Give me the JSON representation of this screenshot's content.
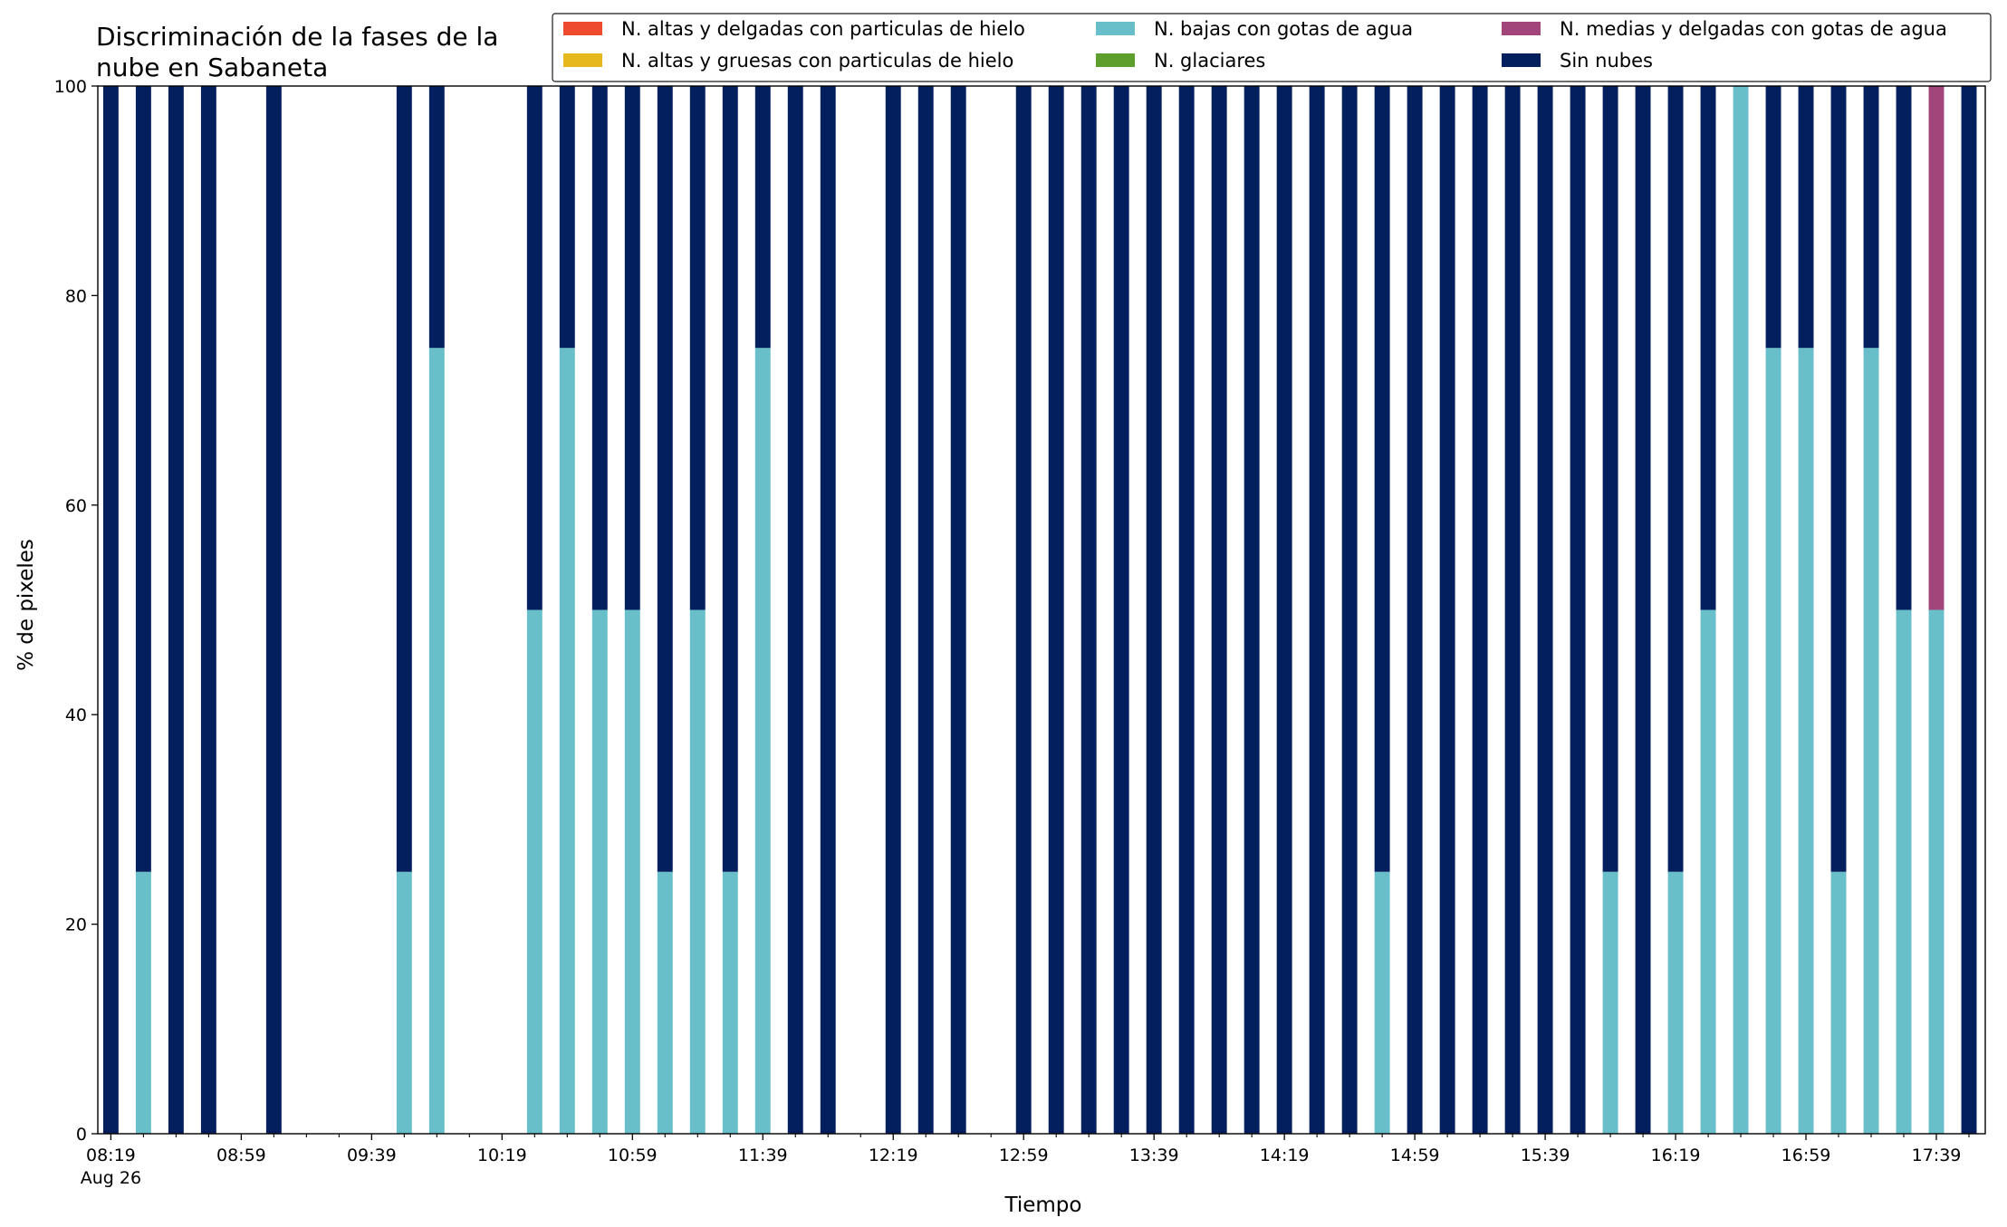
{
  "chart_data": {
    "type": "bar",
    "stacked": true,
    "title_lines": [
      "Discriminación de la fases de la",
      "nube en Sabaneta"
    ],
    "xlabel": "Tiempo",
    "ylabel": "% de pixeles",
    "ylim": [
      0,
      100
    ],
    "yticks": [
      0,
      20,
      40,
      60,
      80,
      100
    ],
    "xlim_minutes": [
      495,
      1074
    ],
    "xticks": [
      {
        "minute": 499,
        "label": "08:19",
        "sublabel": "Aug 26"
      },
      {
        "minute": 539,
        "label": "08:59",
        "sublabel": ""
      },
      {
        "minute": 579,
        "label": "09:39",
        "sublabel": ""
      },
      {
        "minute": 619,
        "label": "10:19",
        "sublabel": ""
      },
      {
        "minute": 659,
        "label": "10:59",
        "sublabel": ""
      },
      {
        "minute": 699,
        "label": "11:39",
        "sublabel": ""
      },
      {
        "minute": 739,
        "label": "12:19",
        "sublabel": ""
      },
      {
        "minute": 779,
        "label": "12:59",
        "sublabel": ""
      },
      {
        "minute": 819,
        "label": "13:39",
        "sublabel": ""
      },
      {
        "minute": 859,
        "label": "14:19",
        "sublabel": ""
      },
      {
        "minute": 899,
        "label": "14:59",
        "sublabel": ""
      },
      {
        "minute": 939,
        "label": "15:39",
        "sublabel": ""
      },
      {
        "minute": 979,
        "label": "16:19",
        "sublabel": ""
      },
      {
        "minute": 1019,
        "label": "16:59",
        "sublabel": ""
      },
      {
        "minute": 1059,
        "label": "17:39",
        "sublabel": ""
      }
    ],
    "minor_tick_step_minutes": 10,
    "bar_width_minutes": 4.7,
    "legend": {
      "placement": "top-right",
      "columns": 3,
      "entries": [
        {
          "key": "alt_delg_hielo",
          "label": "N. altas y delgadas con particulas de hielo",
          "color": "#ee4a2e"
        },
        {
          "key": "alt_grue_hielo",
          "label": "N. altas y gruesas con particulas de hielo",
          "color": "#e6b81e"
        },
        {
          "key": "bajas_agua",
          "label": "N. bajas con gotas de agua",
          "color": "#68bfca"
        },
        {
          "key": "glaciares",
          "label": "N. glaciares",
          "color": "#5e9e2d"
        },
        {
          "key": "medias_agua",
          "label": "N. medias y delgadas con gotas de agua",
          "color": "#a1457a"
        },
        {
          "key": "sin_nubes",
          "label": "Sin nubes",
          "color": "#041f5e"
        }
      ]
    },
    "stack_order": [
      "bajas_agua",
      "medias_agua",
      "alt_delg_hielo",
      "alt_grue_hielo",
      "glaciares",
      "sin_nubes"
    ],
    "bars": [
      {
        "time": "08:19",
        "bajas_agua": 0,
        "sin_nubes": 100
      },
      {
        "time": "08:29",
        "bajas_agua": 25,
        "sin_nubes": 75
      },
      {
        "time": "08:39",
        "bajas_agua": 0,
        "sin_nubes": 100
      },
      {
        "time": "08:49",
        "bajas_agua": 0,
        "sin_nubes": 100
      },
      {
        "time": "09:09",
        "bajas_agua": 0,
        "sin_nubes": 100
      },
      {
        "time": "09:49",
        "bajas_agua": 25,
        "sin_nubes": 75
      },
      {
        "time": "09:59",
        "bajas_agua": 75,
        "sin_nubes": 25
      },
      {
        "time": "10:29",
        "bajas_agua": 50,
        "sin_nubes": 50
      },
      {
        "time": "10:39",
        "bajas_agua": 75,
        "sin_nubes": 25
      },
      {
        "time": "10:49",
        "bajas_agua": 50,
        "sin_nubes": 50
      },
      {
        "time": "10:59",
        "bajas_agua": 50,
        "sin_nubes": 50
      },
      {
        "time": "11:09",
        "bajas_agua": 25,
        "sin_nubes": 75
      },
      {
        "time": "11:19",
        "bajas_agua": 50,
        "sin_nubes": 50
      },
      {
        "time": "11:29",
        "bajas_agua": 25,
        "sin_nubes": 75
      },
      {
        "time": "11:39",
        "bajas_agua": 75,
        "sin_nubes": 25
      },
      {
        "time": "11:49",
        "bajas_agua": 0,
        "sin_nubes": 100
      },
      {
        "time": "11:59",
        "bajas_agua": 0,
        "sin_nubes": 100
      },
      {
        "time": "12:19",
        "bajas_agua": 0,
        "sin_nubes": 100
      },
      {
        "time": "12:29",
        "bajas_agua": 0,
        "sin_nubes": 100
      },
      {
        "time": "12:39",
        "bajas_agua": 0,
        "sin_nubes": 100
      },
      {
        "time": "12:59",
        "bajas_agua": 0,
        "sin_nubes": 100
      },
      {
        "time": "13:09",
        "bajas_agua": 0,
        "sin_nubes": 100
      },
      {
        "time": "13:19",
        "bajas_agua": 0,
        "sin_nubes": 100
      },
      {
        "time": "13:29",
        "bajas_agua": 0,
        "sin_nubes": 100
      },
      {
        "time": "13:39",
        "bajas_agua": 0,
        "sin_nubes": 100
      },
      {
        "time": "13:49",
        "bajas_agua": 0,
        "sin_nubes": 100
      },
      {
        "time": "13:59",
        "bajas_agua": 0,
        "sin_nubes": 100
      },
      {
        "time": "14:09",
        "bajas_agua": 0,
        "sin_nubes": 100
      },
      {
        "time": "14:19",
        "bajas_agua": 0,
        "sin_nubes": 100
      },
      {
        "time": "14:29",
        "bajas_agua": 0,
        "sin_nubes": 100
      },
      {
        "time": "14:39",
        "bajas_agua": 0,
        "sin_nubes": 100
      },
      {
        "time": "14:49",
        "bajas_agua": 25,
        "sin_nubes": 75
      },
      {
        "time": "14:59",
        "bajas_agua": 0,
        "sin_nubes": 100
      },
      {
        "time": "15:09",
        "bajas_agua": 0,
        "sin_nubes": 100
      },
      {
        "time": "15:19",
        "bajas_agua": 0,
        "sin_nubes": 100
      },
      {
        "time": "15:29",
        "bajas_agua": 0,
        "sin_nubes": 100
      },
      {
        "time": "15:39",
        "bajas_agua": 0,
        "sin_nubes": 100
      },
      {
        "time": "15:49",
        "bajas_agua": 0,
        "sin_nubes": 100
      },
      {
        "time": "15:59",
        "bajas_agua": 25,
        "sin_nubes": 75
      },
      {
        "time": "16:09",
        "bajas_agua": 0,
        "sin_nubes": 100
      },
      {
        "time": "16:19",
        "bajas_agua": 25,
        "sin_nubes": 75
      },
      {
        "time": "16:29",
        "bajas_agua": 50,
        "sin_nubes": 50
      },
      {
        "time": "16:39",
        "bajas_agua": 100,
        "sin_nubes": 0
      },
      {
        "time": "16:49",
        "bajas_agua": 75,
        "sin_nubes": 25
      },
      {
        "time": "16:59",
        "bajas_agua": 75,
        "sin_nubes": 25
      },
      {
        "time": "17:09",
        "bajas_agua": 25,
        "sin_nubes": 75
      },
      {
        "time": "17:19",
        "bajas_agua": 75,
        "sin_nubes": 25
      },
      {
        "time": "17:29",
        "bajas_agua": 50,
        "sin_nubes": 50
      },
      {
        "time": "17:39",
        "bajas_agua": 50,
        "medias_agua": 50,
        "sin_nubes": 0
      },
      {
        "time": "17:49",
        "bajas_agua": 0,
        "sin_nubes": 100
      }
    ]
  }
}
